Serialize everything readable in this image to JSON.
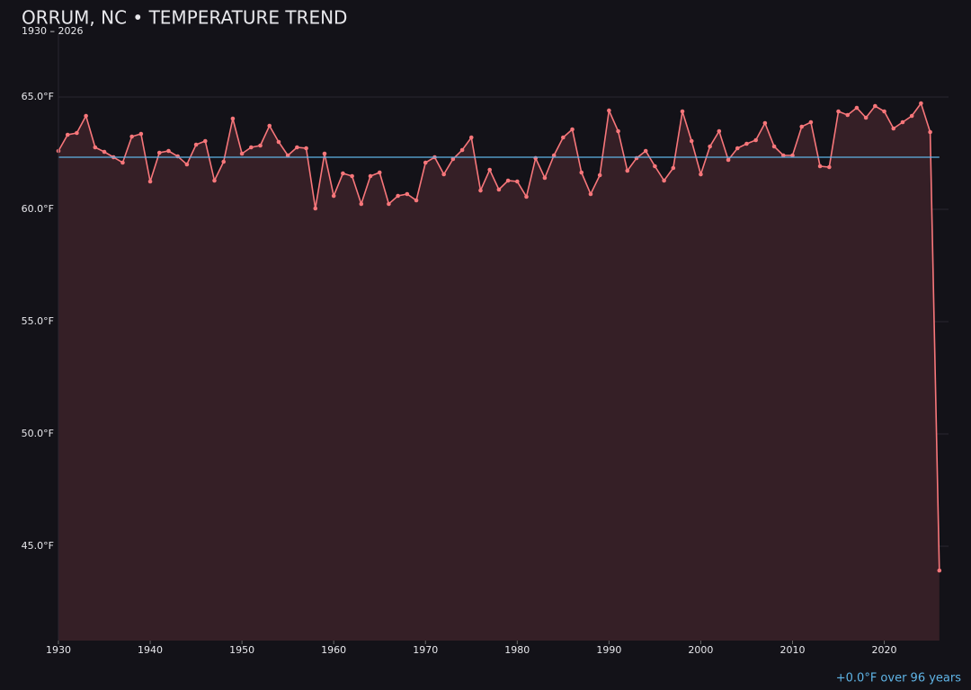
{
  "chart_data": {
    "type": "line",
    "title": "ORRUM, NC • TEMPERATURE TREND",
    "subtitle": "1930 – 2026",
    "annotation": "+0.0°F over 96 years",
    "x": [
      1930,
      1931,
      1932,
      1933,
      1934,
      1935,
      1936,
      1937,
      1938,
      1939,
      1940,
      1941,
      1942,
      1943,
      1944,
      1945,
      1946,
      1947,
      1948,
      1949,
      1950,
      1951,
      1952,
      1953,
      1954,
      1955,
      1956,
      1957,
      1958,
      1959,
      1960,
      1961,
      1962,
      1963,
      1964,
      1965,
      1966,
      1967,
      1968,
      1969,
      1970,
      1971,
      1972,
      1973,
      1974,
      1975,
      1976,
      1977,
      1978,
      1979,
      1980,
      1981,
      1982,
      1983,
      1984,
      1985,
      1986,
      1987,
      1988,
      1989,
      1990,
      1991,
      1992,
      1993,
      1994,
      1995,
      1996,
      1997,
      1998,
      1999,
      2000,
      2001,
      2002,
      2003,
      2004,
      2005,
      2006,
      2007,
      2008,
      2009,
      2010,
      2011,
      2012,
      2013,
      2014,
      2015,
      2016,
      2017,
      2018,
      2019,
      2020,
      2021,
      2022,
      2023,
      2024,
      2025,
      2026
    ],
    "series": [
      {
        "color": "#f7767a",
        "values": [
          62.6,
          63.32,
          63.4,
          64.16,
          62.76,
          62.56,
          62.32,
          62.08,
          63.24,
          63.36,
          61.24,
          62.52,
          62.6,
          62.36,
          62.0,
          62.88,
          63.04,
          61.28,
          62.12,
          64.04,
          62.48,
          62.76,
          62.84,
          63.72,
          63.0,
          62.4,
          62.76,
          62.72,
          60.04,
          62.48,
          60.6,
          61.6,
          61.48,
          60.24,
          61.48,
          61.64,
          60.24,
          60.6,
          60.68,
          60.4,
          62.08,
          62.32,
          61.56,
          62.24,
          62.64,
          63.2,
          60.84,
          61.76,
          60.88,
          61.28,
          61.24,
          60.56,
          62.28,
          61.4,
          62.4,
          63.2,
          63.56,
          61.64,
          60.68,
          61.52,
          64.4,
          63.48,
          61.72,
          62.28,
          62.6,
          61.92,
          61.28,
          61.84,
          64.36,
          63.04,
          61.56,
          62.8,
          63.48,
          62.2,
          62.72,
          62.92,
          63.08,
          63.84,
          62.8,
          62.4,
          62.4,
          63.68,
          63.88,
          61.92,
          61.88,
          64.36,
          64.2,
          64.52,
          64.08,
          64.6,
          64.36,
          63.6,
          63.88,
          64.16,
          64.72,
          63.44,
          43.92
        ]
      }
    ],
    "trend": {
      "color": "#5fb4e6",
      "x": [
        1930,
        2026
      ],
      "values": [
        62.32,
        62.32
      ]
    },
    "area_color": "#351f26",
    "xlim": [
      1930,
      2027
    ],
    "ylim": [
      40.8,
      67.8
    ],
    "xticks": [
      1930,
      1940,
      1950,
      1960,
      1970,
      1980,
      1990,
      2000,
      2010,
      2020
    ],
    "yticks": [
      {
        "value": 45,
        "label": "45.0°F"
      },
      {
        "value": 50,
        "label": "50.0°F"
      },
      {
        "value": 55,
        "label": "55.0°F"
      },
      {
        "value": 60,
        "label": "60.0°F"
      },
      {
        "value": 65,
        "label": "65.0°F"
      }
    ],
    "grid": true
  }
}
